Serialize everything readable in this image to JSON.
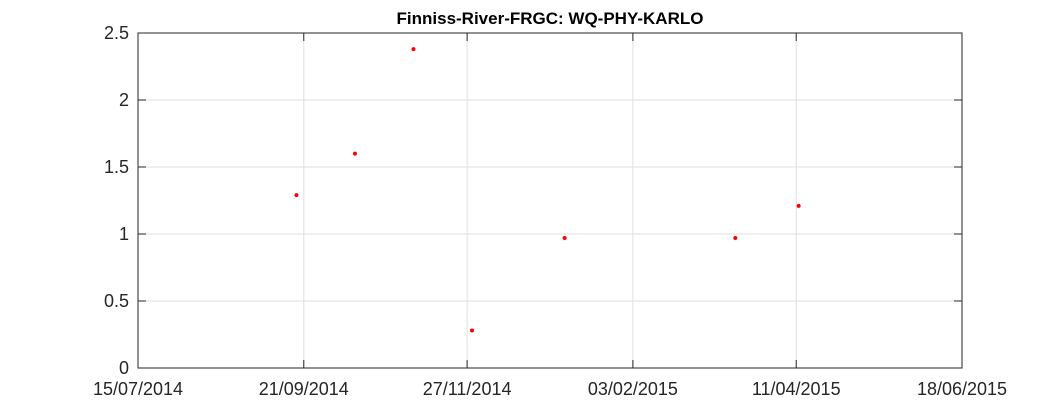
{
  "chart_data": {
    "type": "scatter",
    "title": "Finniss-River-FRGC: WQ-PHY-KARLO",
    "xlabel": "",
    "ylabel": "",
    "x_ticks": [
      "15/07/2014",
      "21/09/2014",
      "27/11/2014",
      "03/02/2015",
      "11/04/2015",
      "18/06/2015"
    ],
    "y_ticks": [
      "0",
      "0.5",
      "1",
      "1.5",
      "2",
      "2.5"
    ],
    "xlim": [
      "15/07/2014",
      "18/06/2015"
    ],
    "ylim": [
      0,
      2.5
    ],
    "grid": true,
    "series": [
      {
        "color": "#ff0000",
        "x": [
          "18/09/2014",
          "12/10/2014",
          "05/11/2014",
          "29/11/2014",
          "06/01/2015",
          "17/03/2015",
          "12/04/2015"
        ],
        "y": [
          1.29,
          1.6,
          2.38,
          0.28,
          0.97,
          0.97,
          1.21
        ]
      }
    ]
  }
}
